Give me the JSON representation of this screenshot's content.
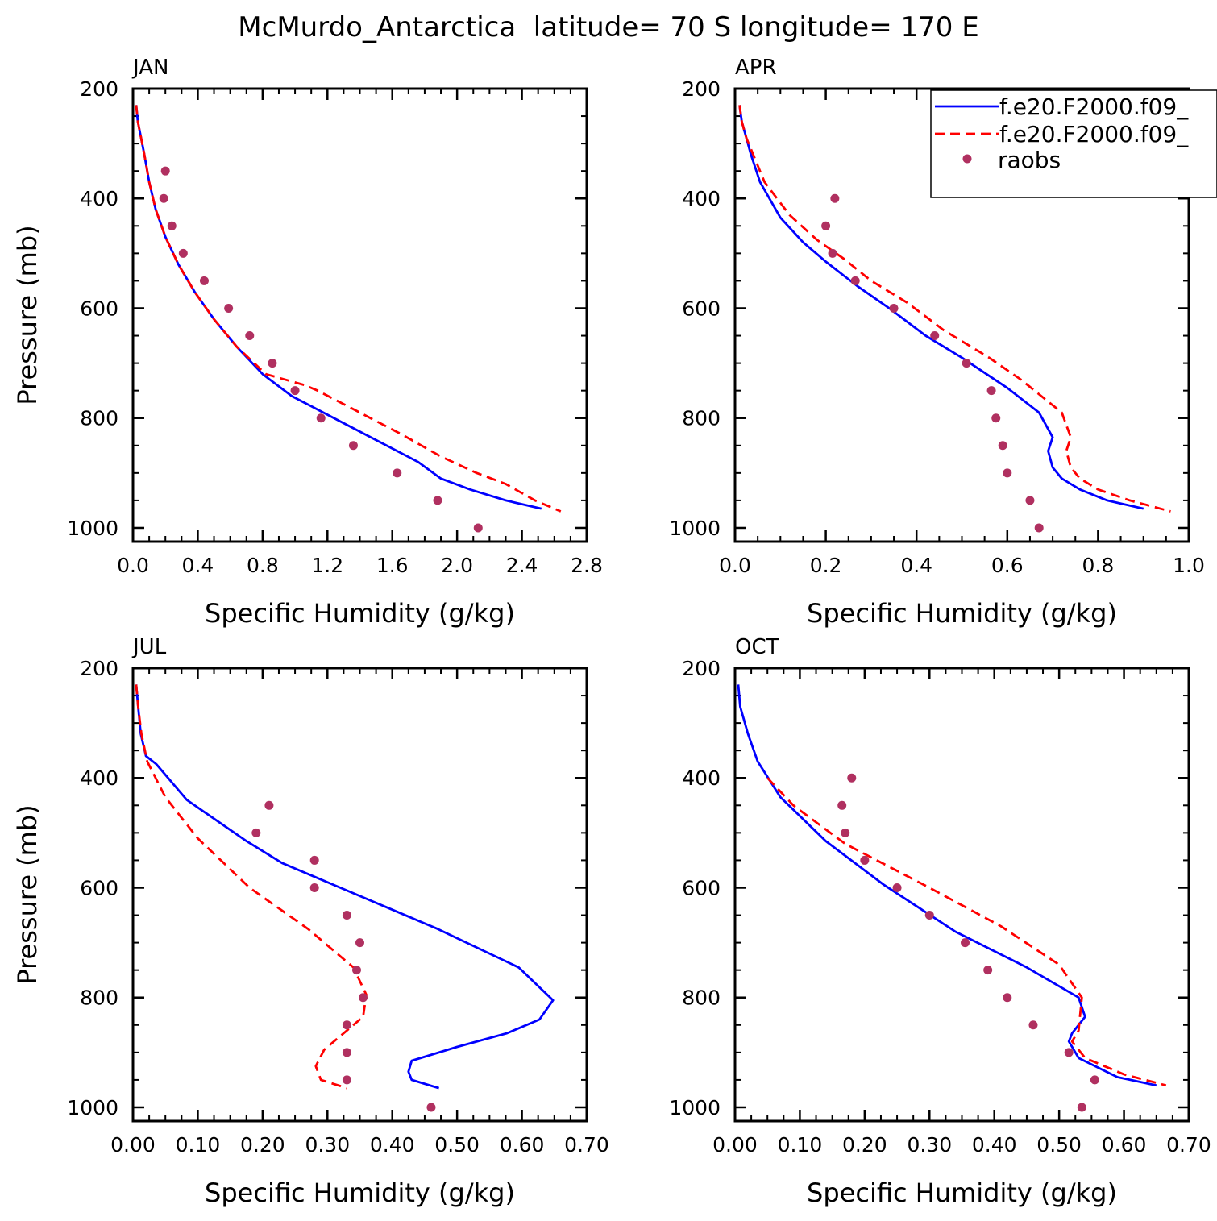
{
  "figure": {
    "title": "McMurdo_Antarctica  latitude= 70 S longitude= 170 E"
  },
  "legend": {
    "placement": "top-right of APR panel",
    "entries": [
      {
        "label": "f.e20.F2000.f09_",
        "style": "solid",
        "color": "#0000ff"
      },
      {
        "label": "f.e20.F2000.f09_",
        "style": "dashed",
        "color": "#ff0000"
      },
      {
        "label": "raobs",
        "style": "marker",
        "color": "#b03060"
      }
    ]
  },
  "colors": {
    "model_solid": "#0000ff",
    "model_dashed": "#ff0000",
    "raobs": "#b03060"
  },
  "chart_data": [
    {
      "type": "line",
      "panel_label": "JAN",
      "xlabel": "Specific Humidity (g/kg)",
      "ylabel": "Pressure (mb)",
      "xlim": [
        0,
        2.8
      ],
      "ylim": [
        200,
        1025
      ],
      "y_inverted": true,
      "xticks": [
        "0.0",
        "0.4",
        "0.8",
        "1.2",
        "1.6",
        "2.0",
        "2.4",
        "2.8"
      ],
      "xtick_values": [
        0,
        0.4,
        0.8,
        1.2,
        1.6,
        2.0,
        2.4,
        2.8
      ],
      "yticks": [
        "200",
        "400",
        "600",
        "800",
        "1000"
      ],
      "ytick_values": [
        200,
        400,
        600,
        800,
        1000
      ],
      "series": [
        {
          "name": "f.e20.F2000.f09_",
          "style": "solid",
          "x": [
            0.02,
            0.03,
            0.05,
            0.07,
            0.1,
            0.14,
            0.2,
            0.28,
            0.38,
            0.5,
            0.64,
            0.8,
            0.98,
            1.24,
            1.5,
            1.76,
            1.9,
            2.08,
            2.3,
            2.52
          ],
          "y": [
            230,
            260,
            290,
            320,
            370,
            420,
            470,
            520,
            570,
            620,
            670,
            720,
            760,
            800,
            840,
            880,
            910,
            930,
            950,
            965
          ]
        },
        {
          "name": "f.e20.F2000.f09_",
          "style": "dashed",
          "x": [
            0.02,
            0.03,
            0.05,
            0.07,
            0.1,
            0.14,
            0.2,
            0.28,
            0.38,
            0.5,
            0.64,
            0.82,
            1.06,
            1.14,
            1.4,
            1.66,
            1.9,
            2.12,
            2.3,
            2.48,
            2.64
          ],
          "y": [
            230,
            260,
            290,
            320,
            370,
            420,
            470,
            520,
            570,
            620,
            670,
            720,
            740,
            750,
            790,
            830,
            870,
            900,
            920,
            950,
            970
          ]
        },
        {
          "name": "raobs",
          "style": "marker",
          "x": [
            0.2,
            0.19,
            0.24,
            0.31,
            0.44,
            0.59,
            0.72,
            0.86,
            1.0,
            1.16,
            1.36,
            1.63,
            1.88,
            2.13
          ],
          "y": [
            350,
            400,
            450,
            500,
            550,
            600,
            650,
            700,
            750,
            800,
            850,
            900,
            950,
            1000
          ]
        }
      ]
    },
    {
      "type": "line",
      "panel_label": "APR",
      "xlabel": "Specific Humidity (g/kg)",
      "ylabel": "",
      "xlim": [
        0,
        1.0
      ],
      "ylim": [
        200,
        1025
      ],
      "y_inverted": true,
      "xticks": [
        "0.0",
        "0.2",
        "0.4",
        "0.6",
        "0.8",
        "1.0"
      ],
      "xtick_values": [
        0,
        0.2,
        0.4,
        0.6,
        0.8,
        1.0
      ],
      "yticks": [
        "200",
        "400",
        "600",
        "800",
        "1000"
      ],
      "ytick_values": [
        200,
        400,
        600,
        800,
        1000
      ],
      "series": [
        {
          "name": "f.e20.F2000.f09_",
          "style": "solid",
          "x": [
            0.01,
            0.015,
            0.025,
            0.035,
            0.055,
            0.1,
            0.15,
            0.2,
            0.27,
            0.34,
            0.42,
            0.5,
            0.6,
            0.67,
            0.7,
            0.69,
            0.7,
            0.72,
            0.76,
            0.82,
            0.9
          ],
          "y": [
            230,
            260,
            290,
            320,
            370,
            435,
            480,
            515,
            560,
            600,
            650,
            690,
            745,
            790,
            835,
            860,
            890,
            910,
            930,
            950,
            965
          ]
        },
        {
          "name": "f.e20.F2000.f09_",
          "style": "dashed",
          "x": [
            0.01,
            0.015,
            0.025,
            0.04,
            0.065,
            0.12,
            0.18,
            0.24,
            0.3,
            0.38,
            0.46,
            0.56,
            0.63,
            0.72,
            0.74,
            0.73,
            0.74,
            0.76,
            0.8,
            0.87,
            0.96
          ],
          "y": [
            230,
            260,
            290,
            320,
            370,
            430,
            475,
            510,
            550,
            590,
            640,
            690,
            730,
            790,
            835,
            860,
            890,
            910,
            930,
            950,
            970
          ]
        },
        {
          "name": "raobs",
          "style": "marker",
          "x": [
            0.22,
            0.2,
            0.215,
            0.265,
            0.35,
            0.44,
            0.51,
            0.565,
            0.575,
            0.59,
            0.6,
            0.65,
            0.67
          ],
          "y": [
            400,
            450,
            500,
            550,
            600,
            650,
            700,
            750,
            800,
            850,
            900,
            950,
            1000
          ]
        }
      ]
    },
    {
      "type": "line",
      "panel_label": "JUL",
      "xlabel": "Specific Humidity (g/kg)",
      "ylabel": "Pressure (mb)",
      "xlim": [
        0,
        0.7
      ],
      "ylim": [
        200,
        1025
      ],
      "y_inverted": true,
      "xticks": [
        "0.00",
        "0.10",
        "0.20",
        "0.30",
        "0.40",
        "0.50",
        "0.60",
        "0.70"
      ],
      "xtick_values": [
        0,
        0.1,
        0.2,
        0.3,
        0.4,
        0.5,
        0.6,
        0.7
      ],
      "yticks": [
        "200",
        "400",
        "600",
        "800",
        "1000"
      ],
      "ytick_values": [
        200,
        400,
        600,
        800,
        1000
      ],
      "series": [
        {
          "name": "f.e20.F2000.f09_",
          "style": "solid",
          "x": [
            0.005,
            0.008,
            0.012,
            0.02,
            0.036,
            0.083,
            0.175,
            0.23,
            0.32,
            0.47,
            0.595,
            0.648,
            0.627,
            0.577,
            0.5,
            0.43,
            0.425,
            0.43,
            0.472
          ],
          "y": [
            230,
            270,
            320,
            360,
            375,
            440,
            515,
            555,
            600,
            675,
            745,
            805,
            840,
            865,
            890,
            915,
            935,
            950,
            965
          ]
        },
        {
          "name": "f.e20.F2000.f09_",
          "style": "dashed",
          "x": [
            0.005,
            0.008,
            0.013,
            0.022,
            0.05,
            0.1,
            0.18,
            0.27,
            0.34,
            0.36,
            0.355,
            0.32,
            0.295,
            0.282,
            0.29,
            0.33
          ],
          "y": [
            230,
            270,
            320,
            370,
            435,
            510,
            600,
            675,
            745,
            795,
            835,
            870,
            895,
            925,
            950,
            965
          ]
        },
        {
          "name": "raobs",
          "style": "marker",
          "x": [
            0.21,
            0.19,
            0.28,
            0.28,
            0.33,
            0.35,
            0.345,
            0.355,
            0.33,
            0.33,
            0.33,
            0.46
          ],
          "y": [
            450,
            500,
            550,
            600,
            650,
            700,
            750,
            800,
            850,
            900,
            950,
            1000
          ]
        }
      ]
    },
    {
      "type": "line",
      "panel_label": "OCT",
      "xlabel": "Specific Humidity (g/kg)",
      "ylabel": "",
      "xlim": [
        0,
        0.7
      ],
      "ylim": [
        200,
        1025
      ],
      "y_inverted": true,
      "xticks": [
        "0.00",
        "0.10",
        "0.20",
        "0.30",
        "0.40",
        "0.50",
        "0.60",
        "0.70"
      ],
      "xtick_values": [
        0,
        0.1,
        0.2,
        0.3,
        0.4,
        0.5,
        0.6,
        0.7
      ],
      "yticks": [
        "200",
        "400",
        "600",
        "800",
        "1000"
      ],
      "ytick_values": [
        200,
        400,
        600,
        800,
        1000
      ],
      "series": [
        {
          "name": "f.e20.F2000.f09_",
          "style": "solid",
          "x": [
            0.005,
            0.008,
            0.02,
            0.035,
            0.07,
            0.14,
            0.23,
            0.34,
            0.45,
            0.53,
            0.54,
            0.52,
            0.515,
            0.53,
            0.59,
            0.65
          ],
          "y": [
            230,
            270,
            320,
            370,
            435,
            515,
            595,
            680,
            745,
            800,
            835,
            865,
            880,
            910,
            945,
            960
          ]
        },
        {
          "name": "f.e20.F2000.f09_",
          "style": "dashed",
          "x": [
            0.05,
            0.09,
            0.17,
            0.3,
            0.41,
            0.5,
            0.535,
            0.53,
            0.52,
            0.54,
            0.6,
            0.665
          ],
          "y": [
            400,
            450,
            520,
            600,
            670,
            740,
            800,
            860,
            880,
            910,
            940,
            960
          ]
        },
        {
          "name": "raobs",
          "style": "marker",
          "x": [
            0.18,
            0.165,
            0.17,
            0.2,
            0.25,
            0.3,
            0.355,
            0.39,
            0.42,
            0.46,
            0.515,
            0.555,
            0.535
          ],
          "y": [
            400,
            450,
            500,
            550,
            600,
            650,
            700,
            750,
            800,
            850,
            900,
            950,
            1000
          ]
        }
      ]
    }
  ]
}
